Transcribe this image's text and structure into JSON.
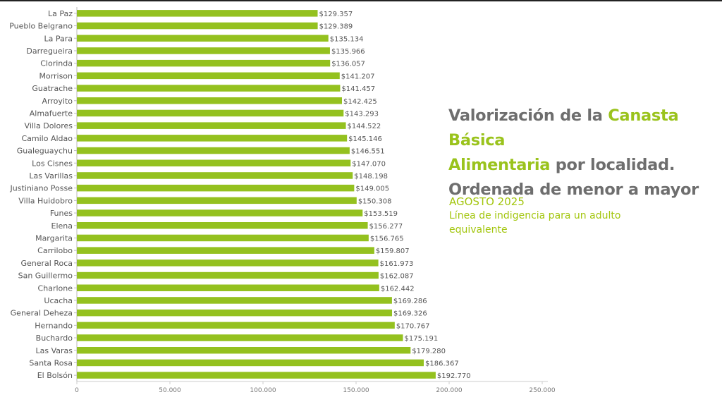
{
  "title": {
    "part1": "Valorización de la ",
    "highlight1": "Canasta Básica",
    "highlight2": "Alimentaria",
    "part2": " por localidad.",
    "line3": "Ordenada de menor a mayor"
  },
  "subtitle": {
    "date": "AGOSTO 2025",
    "description": "Línea de indigencia para un adulto equivalente"
  },
  "colors": {
    "bar": "#94c11f",
    "accent": "#9ac31c",
    "title": "#6e6e6e"
  },
  "chart_data": {
    "type": "bar",
    "orientation": "horizontal",
    "categories": [
      "La Paz",
      "Pueblo Belgrano",
      "La Para",
      "Darregueira",
      "Clorinda",
      "Morrison",
      "Guatrache",
      "Arroyito",
      "Almafuerte",
      "Villa Dolores",
      "Camilo Aldao",
      "Gualeguaychu",
      "Los Cisnes",
      "Las Varillas",
      "Justiniano Posse",
      "Villa Huidobro",
      "Funes",
      "Elena",
      "Margarita",
      "Carrilobo",
      "General Roca",
      "San Guillermo",
      "Charlone",
      "Ucacha",
      "General Deheza",
      "Hernando",
      "Buchardo",
      "Las Varas",
      "Santa Rosa",
      "El Bolsón"
    ],
    "values": [
      129357,
      129389,
      135134,
      135966,
      136057,
      141207,
      141457,
      142425,
      143293,
      144522,
      145146,
      146551,
      147070,
      148198,
      149005,
      150308,
      153519,
      156277,
      156765,
      159807,
      161973,
      162087,
      162442,
      169286,
      169326,
      170767,
      175191,
      179280,
      186367,
      192770
    ],
    "value_labels": [
      "$129.357",
      "$129.389",
      "$135.134",
      "$135.966",
      "$136.057",
      "$141.207",
      "$141.457",
      "$142.425",
      "$143.293",
      "$144.522",
      "$145.146",
      "$146.551",
      "$147.070",
      "$148.198",
      "$149.005",
      "$150.308",
      "$153.519",
      "$156.277",
      "$156.765",
      "$159.807",
      "$161.973",
      "$162.087",
      "$162.442",
      "$169.286",
      "$169.326",
      "$170.767",
      "$175.191",
      "$179.280",
      "$186.367",
      "$192.770"
    ],
    "xlim": [
      0,
      250000
    ],
    "x_ticks": [
      0,
      50000,
      100000,
      150000,
      200000,
      250000
    ],
    "x_tick_labels": [
      "0",
      "50.000",
      "100.000",
      "150.000",
      "200.000",
      "250.000"
    ],
    "grid": false
  }
}
